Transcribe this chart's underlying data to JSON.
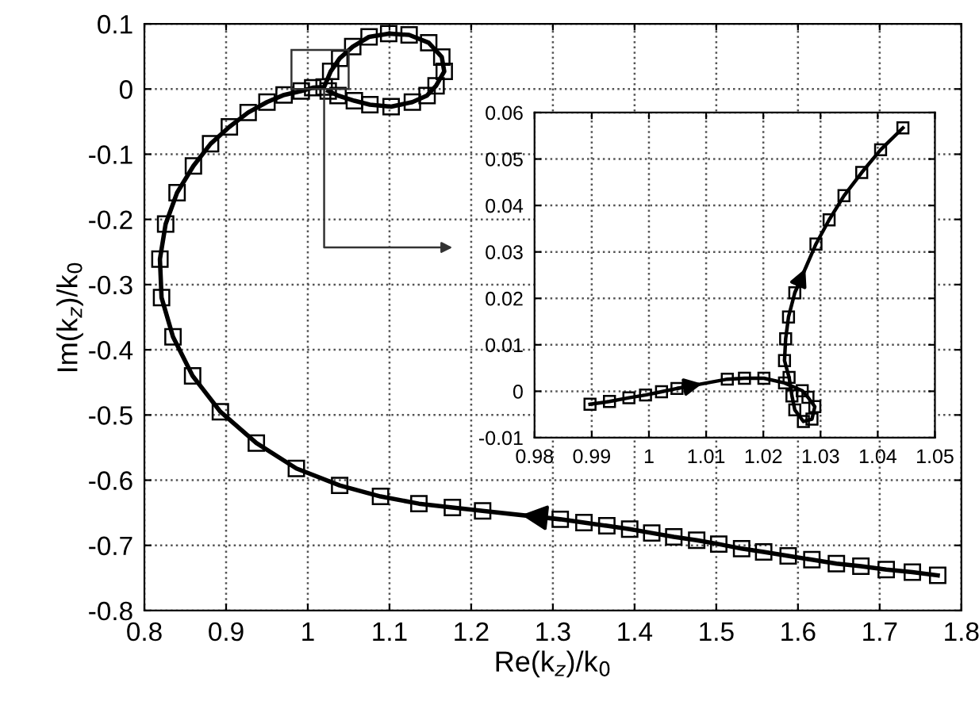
{
  "chart_data": [
    {
      "type": "line",
      "xlabel": "Re(k$_{z}$)/k$_{0}$",
      "ylabel": "Im(k$_{z}$)/k$_{0}$",
      "marker": "square",
      "line_style": "solid",
      "grid": true,
      "xlim": [
        0.8,
        1.8
      ],
      "xticks": [
        0.8,
        0.9,
        1,
        1.1,
        1.2,
        1.3,
        1.4,
        1.5,
        1.6,
        1.7,
        1.8
      ],
      "ylim": [
        -0.8,
        0.1
      ],
      "yticks": [
        -0.8,
        -0.7,
        -0.6,
        -0.5,
        -0.4,
        -0.3,
        -0.2,
        -0.1,
        0,
        0.1
      ],
      "series": [
        {
          "color": "#000000",
          "x": [
            1.771,
            1.74,
            1.708,
            1.677,
            1.647,
            1.617,
            1.588,
            1.558,
            1.531,
            1.503,
            1.476,
            1.448,
            1.421,
            1.394,
            1.366,
            1.338,
            1.309,
            1.214,
            1.177,
            1.136,
            1.089,
            1.039,
            0.986,
            0.937,
            0.893,
            0.859,
            0.835,
            0.821,
            0.819,
            0.826,
            0.84,
            0.86,
            0.881,
            0.904,
            0.927,
            0.95,
            0.971,
            0.992,
            1.006,
            1.02,
            1.028,
            1.039,
            1.055,
            1.075,
            1.099,
            1.124,
            1.148,
            1.164,
            1.167,
            1.157,
            1.146,
            1.128,
            1.102,
            1.076,
            1.057,
            1.037,
            1.025
          ],
          "values": [
            -0.746,
            -0.741,
            -0.737,
            -0.732,
            -0.728,
            -0.722,
            -0.716,
            -0.71,
            -0.705,
            -0.698,
            -0.692,
            -0.687,
            -0.681,
            -0.675,
            -0.67,
            -0.665,
            -0.66,
            -0.647,
            -0.642,
            -0.636,
            -0.625,
            -0.608,
            -0.582,
            -0.543,
            -0.495,
            -0.44,
            -0.38,
            -0.32,
            -0.261,
            -0.207,
            -0.159,
            -0.118,
            -0.084,
            -0.058,
            -0.036,
            -0.02,
            -0.009,
            -0.003,
            0.002,
            0.003,
            0.027,
            0.047,
            0.065,
            0.08,
            0.085,
            0.083,
            0.071,
            0.049,
            0.027,
            0.005,
            -0.01,
            -0.02,
            -0.027,
            -0.024,
            -0.018,
            -0.01,
            -0.003
          ]
        }
      ]
    },
    {
      "type": "line",
      "marker": "square",
      "line_style": "solid",
      "grid": true,
      "xlim": [
        0.98,
        1.05
      ],
      "xticks": [
        0.98,
        0.99,
        1,
        1.01,
        1.02,
        1.03,
        1.04,
        1.05
      ],
      "ylim": [
        -0.01,
        0.06
      ],
      "yticks": [
        -0.01,
        0,
        0.01,
        0.02,
        0.03,
        0.04,
        0.05,
        0.06
      ],
      "series": [
        {
          "color": "#000000",
          "x": [
            0.9897,
            0.9931,
            0.9965,
            0.9994,
            1.0022,
            1.0049,
            1.0137,
            1.0167,
            1.0201,
            1.0237,
            1.0268,
            1.0278,
            1.029,
            1.0285,
            1.027,
            1.0255,
            1.025,
            1.0245,
            1.0237,
            1.0239,
            1.0244,
            1.0255,
            1.0292,
            1.0315,
            1.0341,
            1.0372,
            1.0405,
            1.0444
          ],
          "values": [
            -0.0028,
            -0.0022,
            -0.0014,
            -0.0008,
            -0.0001,
            0.0006,
            0.0026,
            0.0028,
            0.0028,
            0.0018,
            0.0001,
            -0.0013,
            -0.0033,
            -0.006,
            -0.0065,
            -0.004,
            -0.001,
            0.003,
            0.0066,
            0.0113,
            0.016,
            0.0212,
            0.0317,
            0.0369,
            0.0421,
            0.0471,
            0.052,
            0.0567
          ]
        }
      ]
    }
  ]
}
